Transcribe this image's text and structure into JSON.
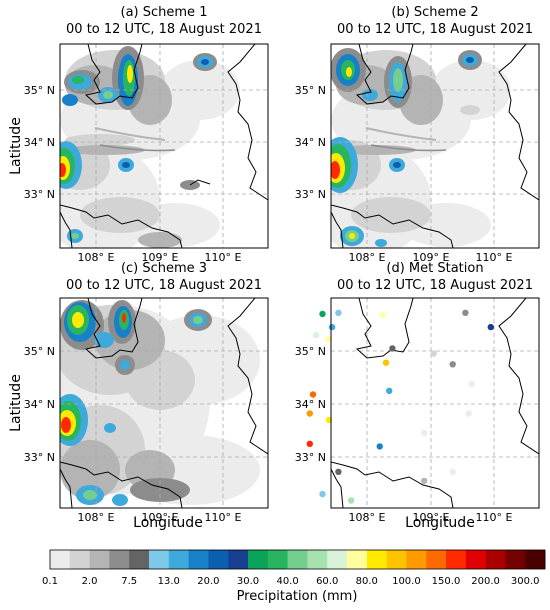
{
  "panels": [
    {
      "id": "a",
      "title": "(a) Scheme 1",
      "subtitle": "00 to 12 UTC, 18 August 2021"
    },
    {
      "id": "b",
      "title": "(b) Scheme 2",
      "subtitle": "00 to 12 UTC, 18 August 2021"
    },
    {
      "id": "c",
      "title": "(c) Scheme 3",
      "subtitle": "00 to 12 UTC, 18 August 2021"
    },
    {
      "id": "d",
      "title": "(d) Met Station",
      "subtitle": "00 to 12 UTC, 18 August 2021"
    }
  ],
  "axes": {
    "ylabel": "Latitude",
    "xlabel": "Longitude",
    "lat_ticks": [
      "35° N",
      "34° N",
      "33° N"
    ],
    "lon_ticks": [
      "108° E",
      "109° E",
      "110° E"
    ]
  },
  "colorbar": {
    "label": "Precipitation (mm)",
    "tick_labels": [
      "0.1",
      "2.0",
      "7.5",
      "13.0",
      "20.0",
      "30.0",
      "40.0",
      "60.0",
      "80.0",
      "100.0",
      "150.0",
      "200.0",
      "300.0"
    ],
    "colors": [
      "#ececec",
      "#d3d3d3",
      "#b4b4b4",
      "#8c8c8c",
      "#646464",
      "#7ec8e8",
      "#3ea9db",
      "#1681c8",
      "#0b5fb0",
      "#173f8f",
      "#0aa35a",
      "#28b560",
      "#74cf8e",
      "#a6e2b0",
      "#d8f3d8",
      "#ffff9e",
      "#ffea00",
      "#ffc400",
      "#ff9a00",
      "#ff6a00",
      "#ff2a00",
      "#e10000",
      "#aa0000",
      "#750000",
      "#4a0000"
    ]
  },
  "stations": [
    {
      "lon": 107.3,
      "lat": 35.7,
      "color": "#0aa35a"
    },
    {
      "lon": 107.55,
      "lat": 35.72,
      "color": "#7ec8e8"
    },
    {
      "lon": 108.25,
      "lat": 35.68,
      "color": "#ffff9e"
    },
    {
      "lon": 109.55,
      "lat": 35.72,
      "color": "#8c8c8c"
    },
    {
      "lon": 109.95,
      "lat": 35.45,
      "color": "#173f8f"
    },
    {
      "lon": 107.45,
      "lat": 35.45,
      "color": "#3ea9db"
    },
    {
      "lon": 107.2,
      "lat": 35.3,
      "color": "#d8f3d8"
    },
    {
      "lon": 107.4,
      "lat": 35.22,
      "color": "#ffff9e"
    },
    {
      "lon": 108.4,
      "lat": 35.05,
      "color": "#646464"
    },
    {
      "lon": 109.05,
      "lat": 34.95,
      "color": "#d3d3d3"
    },
    {
      "lon": 108.3,
      "lat": 34.78,
      "color": "#ffc400"
    },
    {
      "lon": 109.35,
      "lat": 34.75,
      "color": "#8c8c8c"
    },
    {
      "lon": 109.65,
      "lat": 34.38,
      "color": "#ececec"
    },
    {
      "lon": 107.15,
      "lat": 34.18,
      "color": "#ff6a00"
    },
    {
      "lon": 108.35,
      "lat": 34.25,
      "color": "#3ea9db"
    },
    {
      "lon": 107.1,
      "lat": 33.82,
      "color": "#ff9a00"
    },
    {
      "lon": 107.4,
      "lat": 33.7,
      "color": "#ffea00"
    },
    {
      "lon": 109.6,
      "lat": 33.82,
      "color": "#ececec"
    },
    {
      "lon": 108.9,
      "lat": 33.45,
      "color": "#ececec"
    },
    {
      "lon": 107.1,
      "lat": 33.25,
      "color": "#ff2a00"
    },
    {
      "lon": 108.2,
      "lat": 33.2,
      "color": "#1681c8"
    },
    {
      "lon": 107.55,
      "lat": 32.72,
      "color": "#646464"
    },
    {
      "lon": 109.35,
      "lat": 32.72,
      "color": "#ececec"
    },
    {
      "lon": 108.9,
      "lat": 32.55,
      "color": "#b4b4b4"
    },
    {
      "lon": 107.3,
      "lat": 32.3,
      "color": "#7ec8e8"
    },
    {
      "lon": 107.75,
      "lat": 32.18,
      "color": "#a6e2b0"
    }
  ]
}
